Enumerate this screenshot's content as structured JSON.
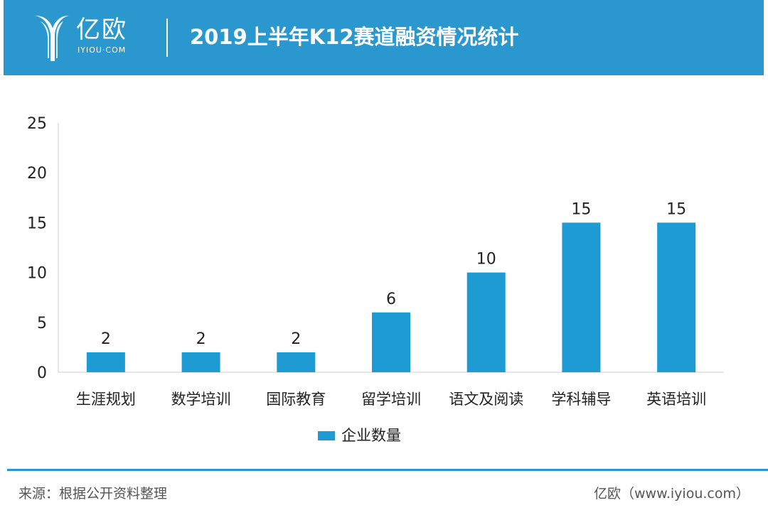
{
  "header": {
    "logo_cn": "亿欧",
    "logo_en": "IYIOU·COM",
    "title": "2019上半年K12赛道融资情况统计"
  },
  "colors": {
    "brand": "#2a98cf",
    "bar": "#1f9bd4",
    "axis": "#cccccc",
    "text": "#222222"
  },
  "chart_data": {
    "type": "bar",
    "title": "2019上半年K12赛道融资情况统计",
    "categories": [
      "生涯规划",
      "数学培训",
      "国际教育",
      "留学培训",
      "语文及阅读",
      "学科辅导",
      "英语培训"
    ],
    "series": [
      {
        "name": "企业数量",
        "values": [
          2,
          2,
          2,
          6,
          10,
          15,
          15
        ]
      }
    ],
    "data_labels": [
      "2",
      "2",
      "2",
      "6",
      "10",
      "15",
      "15"
    ],
    "ylim": [
      0,
      25
    ],
    "yticks": [
      0,
      5,
      10,
      15,
      20,
      25
    ],
    "grid": false,
    "legend_position": "bottom"
  },
  "legend": {
    "label": "企业数量"
  },
  "footer": {
    "source": "来源：根据公开资料整理",
    "credit": "亿欧（www.iyiou.com）"
  }
}
